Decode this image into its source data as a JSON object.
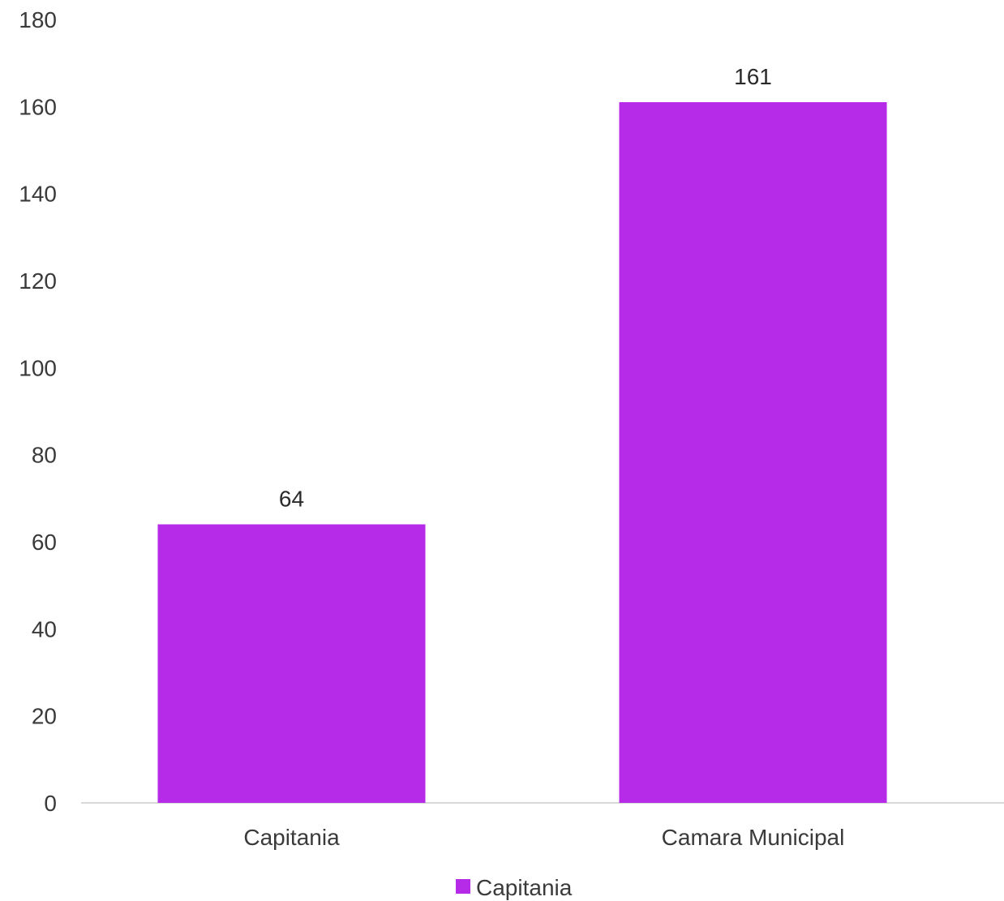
{
  "chart_data": {
    "type": "bar",
    "categories": [
      "Capitania",
      "Camara Municipal"
    ],
    "series": [
      {
        "name": "Capitania",
        "values": [
          64,
          161
        ],
        "color": "#b62be8"
      }
    ],
    "data_labels": [
      "64",
      "161"
    ],
    "y_ticks": [
      0,
      20,
      40,
      60,
      80,
      100,
      120,
      140,
      160,
      180
    ],
    "ylim": [
      0,
      180
    ],
    "grid": false,
    "legend": {
      "position": "bottom",
      "entries": [
        "Capitania"
      ]
    },
    "title": "",
    "xlabel": "",
    "ylabel": "",
    "axis_color": "#d9d9d9"
  }
}
